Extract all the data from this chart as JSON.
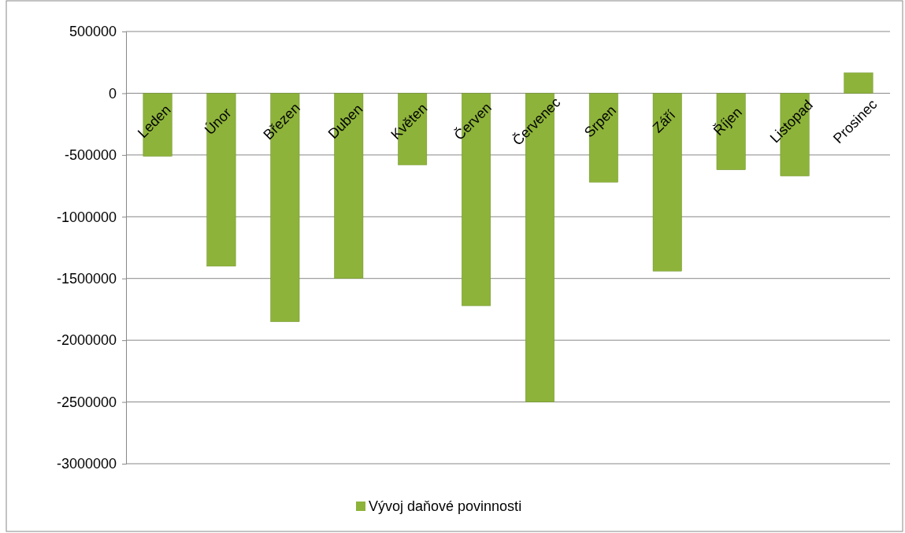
{
  "chart_data": {
    "type": "bar",
    "categories": [
      "Leden",
      "Únor",
      "Březen",
      "Duben",
      "Květen",
      "Červen",
      "Červenec",
      "Srpen",
      "Září",
      "Říjen",
      "Listopad",
      "Prosinec"
    ],
    "series": [
      {
        "name": "Vývoj daňové povinnosti",
        "color": "#8db33a",
        "values": [
          -510000,
          -1400000,
          -1850000,
          -1500000,
          -580000,
          -1720000,
          -2500000,
          -720000,
          -1440000,
          -620000,
          -670000,
          165000
        ]
      }
    ],
    "ylim": [
      -3000000,
      500000
    ],
    "yticks": [
      -3000000,
      -2500000,
      -2000000,
      -1500000,
      -1000000,
      -500000,
      0,
      500000
    ],
    "grid": "y",
    "legend": "bottom"
  }
}
